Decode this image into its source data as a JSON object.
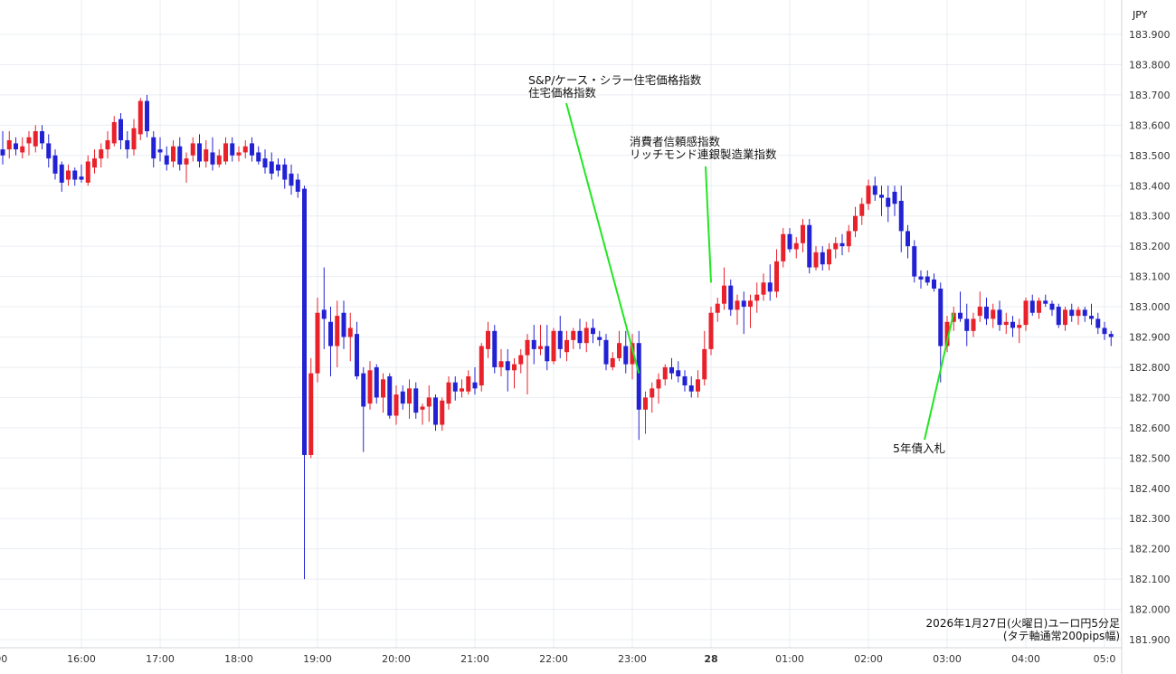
{
  "colors": {
    "up": "#e8212b",
    "down": "#2222d4",
    "annotation_line": "#22e622",
    "grid": "#e9edf2",
    "axis_line": "#cfd4da"
  },
  "chart_data": {
    "type": "candlestick",
    "currency_label": "JPY",
    "footnote": [
      "2026年1月27日(火曜日)ユーロ円5分足",
      "(タテ軸通常200pips幅)"
    ],
    "ylim": [
      181.9,
      183.9
    ],
    "y_ticks": [
      "183.900",
      "183.800",
      "183.700",
      "183.600",
      "183.500",
      "183.400",
      "183.300",
      "183.200",
      "183.100",
      "183.000",
      "182.900",
      "182.800",
      "182.700",
      "182.600",
      "182.500",
      "182.400",
      "182.300",
      "182.200",
      "182.100",
      "182.000",
      "181.900"
    ],
    "x_ticks": [
      {
        "label": ":00",
        "slot": -0.5,
        "bold": false
      },
      {
        "label": "16:00",
        "slot": 12,
        "bold": false
      },
      {
        "label": "17:00",
        "slot": 24,
        "bold": false
      },
      {
        "label": "18:00",
        "slot": 36,
        "bold": false
      },
      {
        "label": "19:00",
        "slot": 48,
        "bold": false
      },
      {
        "label": "20:00",
        "slot": 60,
        "bold": false
      },
      {
        "label": "21:00",
        "slot": 72,
        "bold": false
      },
      {
        "label": "22:00",
        "slot": 84,
        "bold": false
      },
      {
        "label": "23:00",
        "slot": 96,
        "bold": false
      },
      {
        "label": "28",
        "slot": 108,
        "bold": true
      },
      {
        "label": "01:00",
        "slot": 120,
        "bold": false
      },
      {
        "label": "02:00",
        "slot": 132,
        "bold": false
      },
      {
        "label": "03:00",
        "slot": 144,
        "bold": false
      },
      {
        "label": "04:00",
        "slot": 156,
        "bold": false
      },
      {
        "label": "05:0",
        "slot": 168,
        "bold": false
      }
    ],
    "annotations": [
      {
        "lines": [
          "S&P/ケース・シラー住宅価格指数",
          "住宅価格指数"
        ],
        "slot": 97,
        "price": 182.78
      },
      {
        "lines": [
          "消費者信頼感指数",
          "リッチモンド連銀製造業指数"
        ],
        "slot": 108,
        "price": 183.08
      },
      {
        "lines": [
          "5年債入札"
        ],
        "slot": 145,
        "price": 182.98
      }
    ],
    "candles": [
      {
        "o": 183.52,
        "h": 183.58,
        "l": 183.47,
        "c": 183.5
      },
      {
        "o": 183.52,
        "h": 183.58,
        "l": 183.49,
        "c": 183.55
      },
      {
        "o": 183.54,
        "h": 183.56,
        "l": 183.5,
        "c": 183.52
      },
      {
        "o": 183.51,
        "h": 183.56,
        "l": 183.49,
        "c": 183.53
      },
      {
        "o": 183.54,
        "h": 183.58,
        "l": 183.5,
        "c": 183.56
      },
      {
        "o": 183.53,
        "h": 183.6,
        "l": 183.51,
        "c": 183.58
      },
      {
        "o": 183.58,
        "h": 183.6,
        "l": 183.52,
        "c": 183.54
      },
      {
        "o": 183.54,
        "h": 183.57,
        "l": 183.46,
        "c": 183.49
      },
      {
        "o": 183.5,
        "h": 183.52,
        "l": 183.42,
        "c": 183.44
      },
      {
        "o": 183.47,
        "h": 183.48,
        "l": 183.38,
        "c": 183.41
      },
      {
        "o": 183.42,
        "h": 183.47,
        "l": 183.4,
        "c": 183.45
      },
      {
        "o": 183.45,
        "h": 183.46,
        "l": 183.4,
        "c": 183.42
      },
      {
        "o": 183.43,
        "h": 183.47,
        "l": 183.41,
        "c": 183.42
      },
      {
        "o": 183.41,
        "h": 183.5,
        "l": 183.4,
        "c": 183.48
      },
      {
        "o": 183.46,
        "h": 183.52,
        "l": 183.44,
        "c": 183.49
      },
      {
        "o": 183.49,
        "h": 183.54,
        "l": 183.46,
        "c": 183.52
      },
      {
        "o": 183.52,
        "h": 183.58,
        "l": 183.49,
        "c": 183.55
      },
      {
        "o": 183.54,
        "h": 183.63,
        "l": 183.53,
        "c": 183.61
      },
      {
        "o": 183.62,
        "h": 183.64,
        "l": 183.52,
        "c": 183.55
      },
      {
        "o": 183.55,
        "h": 183.58,
        "l": 183.49,
        "c": 183.52
      },
      {
        "o": 183.52,
        "h": 183.62,
        "l": 183.5,
        "c": 183.59
      },
      {
        "o": 183.57,
        "h": 183.69,
        "l": 183.55,
        "c": 183.68
      },
      {
        "o": 183.68,
        "h": 183.7,
        "l": 183.56,
        "c": 183.58
      },
      {
        "o": 183.56,
        "h": 183.58,
        "l": 183.46,
        "c": 183.49
      },
      {
        "o": 183.52,
        "h": 183.56,
        "l": 183.48,
        "c": 183.51
      },
      {
        "o": 183.5,
        "h": 183.53,
        "l": 183.45,
        "c": 183.47
      },
      {
        "o": 183.48,
        "h": 183.55,
        "l": 183.46,
        "c": 183.53
      },
      {
        "o": 183.53,
        "h": 183.56,
        "l": 183.45,
        "c": 183.47
      },
      {
        "o": 183.47,
        "h": 183.51,
        "l": 183.41,
        "c": 183.49
      },
      {
        "o": 183.5,
        "h": 183.56,
        "l": 183.48,
        "c": 183.54
      },
      {
        "o": 183.54,
        "h": 183.57,
        "l": 183.46,
        "c": 183.48
      },
      {
        "o": 183.48,
        "h": 183.55,
        "l": 183.46,
        "c": 183.52
      },
      {
        "o": 183.51,
        "h": 183.56,
        "l": 183.45,
        "c": 183.47
      },
      {
        "o": 183.47,
        "h": 183.52,
        "l": 183.46,
        "c": 183.5
      },
      {
        "o": 183.48,
        "h": 183.56,
        "l": 183.47,
        "c": 183.54
      },
      {
        "o": 183.54,
        "h": 183.56,
        "l": 183.48,
        "c": 183.5
      },
      {
        "o": 183.5,
        "h": 183.53,
        "l": 183.48,
        "c": 183.51
      },
      {
        "o": 183.51,
        "h": 183.55,
        "l": 183.49,
        "c": 183.53
      },
      {
        "o": 183.54,
        "h": 183.56,
        "l": 183.48,
        "c": 183.5
      },
      {
        "o": 183.51,
        "h": 183.53,
        "l": 183.47,
        "c": 183.48
      },
      {
        "o": 183.49,
        "h": 183.52,
        "l": 183.44,
        "c": 183.46
      },
      {
        "o": 183.48,
        "h": 183.51,
        "l": 183.42,
        "c": 183.44
      },
      {
        "o": 183.47,
        "h": 183.49,
        "l": 183.43,
        "c": 183.45
      },
      {
        "o": 183.47,
        "h": 183.49,
        "l": 183.39,
        "c": 183.42
      },
      {
        "o": 183.44,
        "h": 183.47,
        "l": 183.37,
        "c": 183.4
      },
      {
        "o": 183.42,
        "h": 183.44,
        "l": 183.36,
        "c": 183.38
      },
      {
        "o": 183.39,
        "h": 183.4,
        "l": 182.1,
        "c": 182.51
      },
      {
        "o": 182.51,
        "h": 182.83,
        "l": 182.5,
        "c": 182.78
      },
      {
        "o": 182.78,
        "h": 183.03,
        "l": 182.75,
        "c": 182.98
      },
      {
        "o": 182.99,
        "h": 183.13,
        "l": 182.86,
        "c": 182.96
      },
      {
        "o": 182.95,
        "h": 183.0,
        "l": 182.77,
        "c": 182.87
      },
      {
        "o": 182.87,
        "h": 183.02,
        "l": 182.8,
        "c": 182.97
      },
      {
        "o": 182.98,
        "h": 183.02,
        "l": 182.86,
        "c": 182.9
      },
      {
        "o": 182.9,
        "h": 182.98,
        "l": 182.82,
        "c": 182.93
      },
      {
        "o": 182.91,
        "h": 182.95,
        "l": 182.76,
        "c": 182.77
      },
      {
        "o": 182.78,
        "h": 182.8,
        "l": 182.52,
        "c": 182.67
      },
      {
        "o": 182.68,
        "h": 182.82,
        "l": 182.66,
        "c": 182.79
      },
      {
        "o": 182.8,
        "h": 182.81,
        "l": 182.68,
        "c": 182.7
      },
      {
        "o": 182.7,
        "h": 182.78,
        "l": 182.65,
        "c": 182.76
      },
      {
        "o": 182.77,
        "h": 182.78,
        "l": 182.63,
        "c": 182.64
      },
      {
        "o": 182.64,
        "h": 182.74,
        "l": 182.61,
        "c": 182.71
      },
      {
        "o": 182.72,
        "h": 182.74,
        "l": 182.66,
        "c": 182.68
      },
      {
        "o": 182.68,
        "h": 182.76,
        "l": 182.63,
        "c": 182.73
      },
      {
        "o": 182.73,
        "h": 182.75,
        "l": 182.63,
        "c": 182.65
      },
      {
        "o": 182.66,
        "h": 182.68,
        "l": 182.61,
        "c": 182.67
      },
      {
        "o": 182.67,
        "h": 182.74,
        "l": 182.62,
        "c": 182.7
      },
      {
        "o": 182.7,
        "h": 182.71,
        "l": 182.59,
        "c": 182.61
      },
      {
        "o": 182.61,
        "h": 182.7,
        "l": 182.59,
        "c": 182.69
      },
      {
        "o": 182.68,
        "h": 182.77,
        "l": 182.66,
        "c": 182.75
      },
      {
        "o": 182.75,
        "h": 182.77,
        "l": 182.69,
        "c": 182.72
      },
      {
        "o": 182.72,
        "h": 182.76,
        "l": 182.7,
        "c": 182.73
      },
      {
        "o": 182.72,
        "h": 182.79,
        "l": 182.71,
        "c": 182.77
      },
      {
        "o": 182.75,
        "h": 182.8,
        "l": 182.71,
        "c": 182.73
      },
      {
        "o": 182.74,
        "h": 182.88,
        "l": 182.72,
        "c": 182.87
      },
      {
        "o": 182.86,
        "h": 182.95,
        "l": 182.83,
        "c": 182.92
      },
      {
        "o": 182.92,
        "h": 182.94,
        "l": 182.78,
        "c": 182.8
      },
      {
        "o": 182.8,
        "h": 182.86,
        "l": 182.77,
        "c": 182.82
      },
      {
        "o": 182.82,
        "h": 182.86,
        "l": 182.72,
        "c": 182.79
      },
      {
        "o": 182.79,
        "h": 182.83,
        "l": 182.73,
        "c": 182.81
      },
      {
        "o": 182.81,
        "h": 182.86,
        "l": 182.78,
        "c": 182.84
      },
      {
        "o": 182.84,
        "h": 182.91,
        "l": 182.71,
        "c": 182.89
      },
      {
        "o": 182.89,
        "h": 182.94,
        "l": 182.81,
        "c": 182.86
      },
      {
        "o": 182.86,
        "h": 182.94,
        "l": 182.84,
        "c": 182.87
      },
      {
        "o": 182.87,
        "h": 182.94,
        "l": 182.79,
        "c": 182.82
      },
      {
        "o": 182.82,
        "h": 182.93,
        "l": 182.81,
        "c": 182.92
      },
      {
        "o": 182.92,
        "h": 182.97,
        "l": 182.83,
        "c": 182.86
      },
      {
        "o": 182.85,
        "h": 182.92,
        "l": 182.82,
        "c": 182.89
      },
      {
        "o": 182.89,
        "h": 182.93,
        "l": 182.86,
        "c": 182.92
      },
      {
        "o": 182.92,
        "h": 182.96,
        "l": 182.86,
        "c": 182.88
      },
      {
        "o": 182.88,
        "h": 182.95,
        "l": 182.85,
        "c": 182.93
      },
      {
        "o": 182.93,
        "h": 182.96,
        "l": 182.88,
        "c": 182.91
      },
      {
        "o": 182.9,
        "h": 182.92,
        "l": 182.87,
        "c": 182.89
      },
      {
        "o": 182.89,
        "h": 182.91,
        "l": 182.79,
        "c": 182.81
      },
      {
        "o": 182.8,
        "h": 182.85,
        "l": 182.79,
        "c": 182.83
      },
      {
        "o": 182.83,
        "h": 182.92,
        "l": 182.82,
        "c": 182.88
      },
      {
        "o": 182.87,
        "h": 182.92,
        "l": 182.78,
        "c": 182.81
      },
      {
        "o": 182.81,
        "h": 182.91,
        "l": 182.76,
        "c": 182.88
      },
      {
        "o": 182.88,
        "h": 182.92,
        "l": 182.56,
        "c": 182.66
      },
      {
        "o": 182.66,
        "h": 182.72,
        "l": 182.58,
        "c": 182.7
      },
      {
        "o": 182.7,
        "h": 182.75,
        "l": 182.65,
        "c": 182.73
      },
      {
        "o": 182.73,
        "h": 182.78,
        "l": 182.68,
        "c": 182.76
      },
      {
        "o": 182.76,
        "h": 182.81,
        "l": 182.74,
        "c": 182.8
      },
      {
        "o": 182.8,
        "h": 182.83,
        "l": 182.76,
        "c": 182.78
      },
      {
        "o": 182.79,
        "h": 182.82,
        "l": 182.75,
        "c": 182.77
      },
      {
        "o": 182.77,
        "h": 182.79,
        "l": 182.72,
        "c": 182.74
      },
      {
        "o": 182.74,
        "h": 182.77,
        "l": 182.7,
        "c": 182.72
      },
      {
        "o": 182.72,
        "h": 182.79,
        "l": 182.7,
        "c": 182.76
      },
      {
        "o": 182.76,
        "h": 182.92,
        "l": 182.74,
        "c": 182.86
      },
      {
        "o": 182.86,
        "h": 183.0,
        "l": 182.84,
        "c": 182.98
      },
      {
        "o": 182.98,
        "h": 183.03,
        "l": 182.95,
        "c": 183.01
      },
      {
        "o": 183.01,
        "h": 183.13,
        "l": 182.99,
        "c": 183.07
      },
      {
        "o": 183.07,
        "h": 183.09,
        "l": 182.97,
        "c": 182.99
      },
      {
        "o": 182.99,
        "h": 183.04,
        "l": 182.94,
        "c": 183.02
      },
      {
        "o": 183.02,
        "h": 183.05,
        "l": 182.91,
        "c": 183.0
      },
      {
        "o": 183.0,
        "h": 183.04,
        "l": 182.93,
        "c": 183.02
      },
      {
        "o": 183.02,
        "h": 183.08,
        "l": 182.98,
        "c": 183.04
      },
      {
        "o": 183.04,
        "h": 183.11,
        "l": 183.02,
        "c": 183.08
      },
      {
        "o": 183.08,
        "h": 183.14,
        "l": 183.02,
        "c": 183.05
      },
      {
        "o": 183.05,
        "h": 183.19,
        "l": 183.03,
        "c": 183.15
      },
      {
        "o": 183.15,
        "h": 183.26,
        "l": 183.13,
        "c": 183.24
      },
      {
        "o": 183.24,
        "h": 183.26,
        "l": 183.18,
        "c": 183.19
      },
      {
        "o": 183.19,
        "h": 183.23,
        "l": 183.16,
        "c": 183.21
      },
      {
        "o": 183.21,
        "h": 183.29,
        "l": 183.18,
        "c": 183.27
      },
      {
        "o": 183.27,
        "h": 183.29,
        "l": 183.11,
        "c": 183.13
      },
      {
        "o": 183.13,
        "h": 183.2,
        "l": 183.12,
        "c": 183.18
      },
      {
        "o": 183.18,
        "h": 183.2,
        "l": 183.12,
        "c": 183.14
      },
      {
        "o": 183.14,
        "h": 183.21,
        "l": 183.12,
        "c": 183.19
      },
      {
        "o": 183.19,
        "h": 183.23,
        "l": 183.16,
        "c": 183.21
      },
      {
        "o": 183.21,
        "h": 183.24,
        "l": 183.17,
        "c": 183.2
      },
      {
        "o": 183.2,
        "h": 183.27,
        "l": 183.18,
        "c": 183.25
      },
      {
        "o": 183.25,
        "h": 183.33,
        "l": 183.23,
        "c": 183.3
      },
      {
        "o": 183.3,
        "h": 183.36,
        "l": 183.27,
        "c": 183.34
      },
      {
        "o": 183.34,
        "h": 183.42,
        "l": 183.32,
        "c": 183.4
      },
      {
        "o": 183.4,
        "h": 183.43,
        "l": 183.35,
        "c": 183.37
      },
      {
        "o": 183.37,
        "h": 183.4,
        "l": 183.3,
        "c": 183.36
      },
      {
        "o": 183.36,
        "h": 183.4,
        "l": 183.28,
        "c": 183.33
      },
      {
        "o": 183.38,
        "h": 183.4,
        "l": 183.3,
        "c": 183.34
      },
      {
        "o": 183.35,
        "h": 183.4,
        "l": 183.18,
        "c": 183.25
      },
      {
        "o": 183.25,
        "h": 183.27,
        "l": 183.16,
        "c": 183.2
      },
      {
        "o": 183.2,
        "h": 183.22,
        "l": 183.08,
        "c": 183.1
      },
      {
        "o": 183.1,
        "h": 183.12,
        "l": 183.06,
        "c": 183.09
      },
      {
        "o": 183.1,
        "h": 183.12,
        "l": 183.07,
        "c": 183.08
      },
      {
        "o": 183.09,
        "h": 183.11,
        "l": 183.05,
        "c": 183.06
      },
      {
        "o": 183.06,
        "h": 183.08,
        "l": 182.75,
        "c": 182.87
      },
      {
        "o": 182.87,
        "h": 182.97,
        "l": 182.85,
        "c": 182.95
      },
      {
        "o": 182.95,
        "h": 183.0,
        "l": 182.92,
        "c": 182.98
      },
      {
        "o": 182.98,
        "h": 183.05,
        "l": 182.95,
        "c": 182.96
      },
      {
        "o": 182.96,
        "h": 183.01,
        "l": 182.87,
        "c": 182.92
      },
      {
        "o": 182.92,
        "h": 182.98,
        "l": 182.9,
        "c": 182.96
      },
      {
        "o": 182.97,
        "h": 183.05,
        "l": 182.95,
        "c": 183.0
      },
      {
        "o": 183.0,
        "h": 183.03,
        "l": 182.94,
        "c": 182.96
      },
      {
        "o": 182.96,
        "h": 183.01,
        "l": 182.93,
        "c": 182.99
      },
      {
        "o": 182.99,
        "h": 183.02,
        "l": 182.92,
        "c": 182.94
      },
      {
        "o": 182.94,
        "h": 182.98,
        "l": 182.91,
        "c": 182.95
      },
      {
        "o": 182.95,
        "h": 182.97,
        "l": 182.9,
        "c": 182.93
      },
      {
        "o": 182.93,
        "h": 182.96,
        "l": 182.88,
        "c": 182.94
      },
      {
        "o": 182.94,
        "h": 183.03,
        "l": 182.92,
        "c": 183.02
      },
      {
        "o": 183.02,
        "h": 183.04,
        "l": 182.97,
        "c": 182.98
      },
      {
        "o": 182.98,
        "h": 183.03,
        "l": 182.96,
        "c": 183.02
      },
      {
        "o": 183.02,
        "h": 183.04,
        "l": 183.0,
        "c": 183.01
      },
      {
        "o": 183.01,
        "h": 183.02,
        "l": 182.97,
        "c": 182.99
      },
      {
        "o": 183.0,
        "h": 183.01,
        "l": 182.93,
        "c": 182.94
      },
      {
        "o": 182.94,
        "h": 183.0,
        "l": 182.92,
        "c": 182.99
      },
      {
        "o": 182.99,
        "h": 183.01,
        "l": 182.95,
        "c": 182.97
      },
      {
        "o": 182.97,
        "h": 183.0,
        "l": 182.94,
        "c": 182.99
      },
      {
        "o": 182.99,
        "h": 183.0,
        "l": 182.95,
        "c": 182.97
      },
      {
        "o": 182.97,
        "h": 183.01,
        "l": 182.94,
        "c": 182.96
      },
      {
        "o": 182.96,
        "h": 182.98,
        "l": 182.91,
        "c": 182.93
      },
      {
        "o": 182.93,
        "h": 182.95,
        "l": 182.89,
        "c": 182.91
      },
      {
        "o": 182.91,
        "h": 182.92,
        "l": 182.87,
        "c": 182.9
      }
    ]
  }
}
